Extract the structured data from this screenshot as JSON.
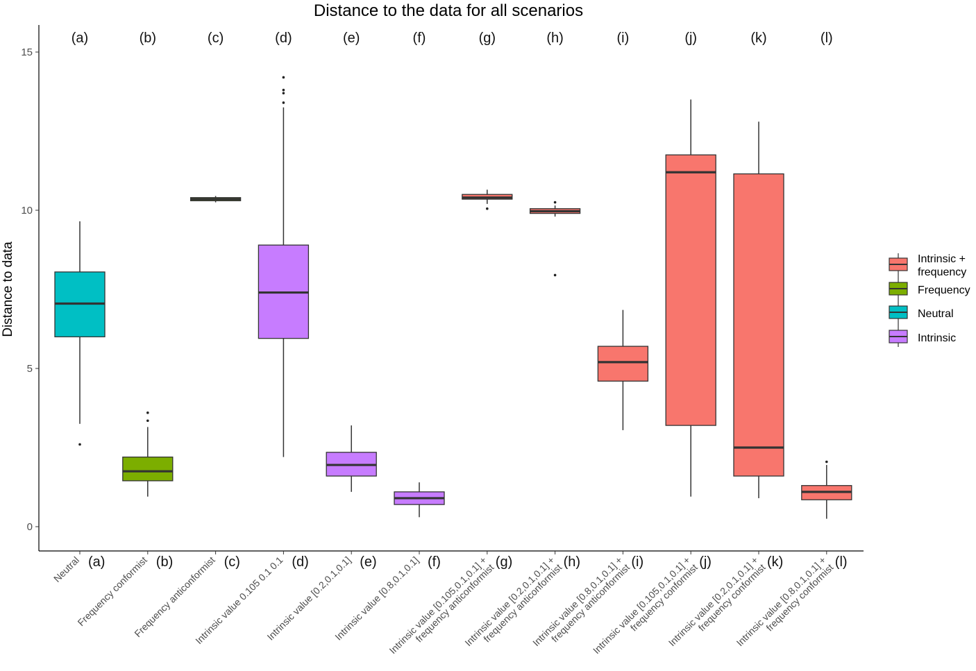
{
  "chart_data": {
    "type": "boxplot",
    "title": "Distance to the data for all scenarios",
    "ylabel": "Distance to data",
    "xlabel": "",
    "ylim": [
      -0.7,
      15.6
    ],
    "yticks": [
      0,
      5,
      10,
      15
    ],
    "grid": false,
    "legend_position": "right",
    "legend": [
      {
        "name": "Intrinsic + frequency",
        "lines": [
          "Intrinsic +",
          "frequency"
        ],
        "color": "#F8766D"
      },
      {
        "name": "Frequency",
        "lines": [
          "Frequency"
        ],
        "color": "#7CAE00"
      },
      {
        "name": "Neutral",
        "lines": [
          "Neutral"
        ],
        "color": "#00BFC4"
      },
      {
        "name": "Intrinsic",
        "lines": [
          "Intrinsic"
        ],
        "color": "#C77CFF"
      }
    ],
    "boxes": [
      {
        "letter": "(a)",
        "label_lines": [
          "Neutral"
        ],
        "group": "Neutral",
        "min": 3.25,
        "q1": 6.0,
        "median": 7.05,
        "q3": 8.05,
        "max": 9.65,
        "outliers": [
          2.6
        ]
      },
      {
        "letter": "(b)",
        "label_lines": [
          "Frequency conformist"
        ],
        "group": "Frequency",
        "min": 0.95,
        "q1": 1.45,
        "median": 1.75,
        "q3": 2.2,
        "max": 3.15,
        "outliers": [
          3.35,
          3.6
        ]
      },
      {
        "letter": "(c)",
        "label_lines": [
          "Frequency anticonformist"
        ],
        "group": "Frequency",
        "min": 10.25,
        "q1": 10.3,
        "median": 10.35,
        "q3": 10.4,
        "max": 10.45,
        "outliers": []
      },
      {
        "letter": "(d)",
        "label_lines": [
          "Intrinsic value 0.105 0.1 0.1"
        ],
        "group": "Intrinsic",
        "min": 2.2,
        "q1": 5.95,
        "median": 7.4,
        "q3": 8.9,
        "max": 13.25,
        "outliers": [
          13.4,
          13.7,
          13.8,
          14.2
        ]
      },
      {
        "letter": "(e)",
        "label_lines": [
          "Intrinsic value [0.2,0.1,0.1]"
        ],
        "group": "Intrinsic",
        "min": 1.1,
        "q1": 1.6,
        "median": 1.95,
        "q3": 2.35,
        "max": 3.2,
        "outliers": []
      },
      {
        "letter": "(f)",
        "label_lines": [
          "Intrinsic value [0.8,0.1,0.1]"
        ],
        "group": "Intrinsic",
        "min": 0.3,
        "q1": 0.7,
        "median": 0.9,
        "q3": 1.1,
        "max": 1.4,
        "outliers": []
      },
      {
        "letter": "(g)",
        "label_lines": [
          "Intrinsic value [0.105,0.1,0.1] +",
          "frequency anticonformist"
        ],
        "group": "Intrinsic + frequency",
        "min": 10.2,
        "q1": 10.35,
        "median": 10.4,
        "q3": 10.5,
        "max": 10.65,
        "outliers": [
          10.05
        ]
      },
      {
        "letter": "(h)",
        "label_lines": [
          "Intrinsic value [0.2,0.1,0.1] +",
          "frequency anticonformist"
        ],
        "group": "Intrinsic + frequency",
        "min": 9.8,
        "q1": 9.9,
        "median": 9.97,
        "q3": 10.05,
        "max": 10.15,
        "outliers": [
          10.25,
          7.95
        ]
      },
      {
        "letter": "(i)",
        "label_lines": [
          "Intrinsic value [0.8,0.1,0.1] +",
          "frequency anticonformist"
        ],
        "group": "Intrinsic + frequency",
        "min": 3.05,
        "q1": 4.6,
        "median": 5.2,
        "q3": 5.7,
        "max": 6.85,
        "outliers": []
      },
      {
        "letter": "(j)",
        "label_lines": [
          "Intrinsic value [0.105,0.1,0.1] +",
          "frequency conformist"
        ],
        "group": "Intrinsic + frequency",
        "min": 0.95,
        "q1": 3.2,
        "median": 11.2,
        "q3": 11.75,
        "max": 13.5,
        "outliers": []
      },
      {
        "letter": "(k)",
        "label_lines": [
          "Intrinsic value [0.2,0.1,0.1] +",
          "frequency conformist"
        ],
        "group": "Intrinsic + frequency",
        "min": 0.9,
        "q1": 1.6,
        "median": 2.5,
        "q3": 11.15,
        "max": 12.8,
        "outliers": []
      },
      {
        "letter": "(l)",
        "label_lines": [
          "Intrinsic value [0.8,0.1,0.1] +",
          "frequency conformist"
        ],
        "group": "Intrinsic + frequency",
        "min": 0.25,
        "q1": 0.85,
        "median": 1.1,
        "q3": 1.3,
        "max": 1.95,
        "outliers": [
          2.05
        ]
      }
    ]
  }
}
